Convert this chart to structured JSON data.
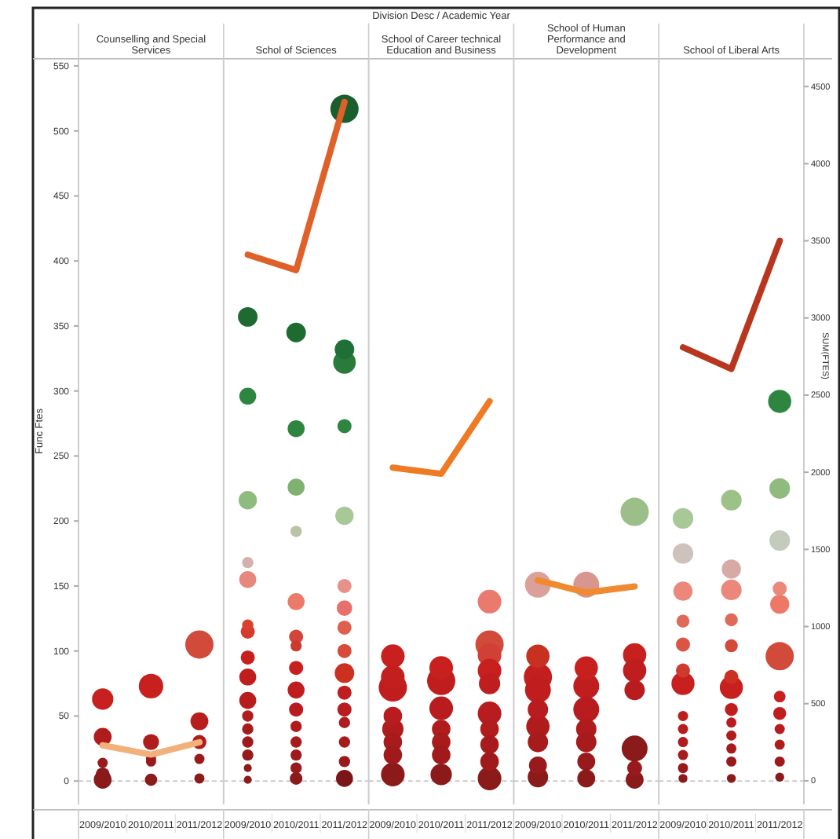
{
  "chart_data": [
    {
      "type": "bubble",
      "title": "Counselling and Special Services",
      "ylabel": "Func Ftes",
      "categories": [
        "2009/2010",
        "2010/2011",
        "2011/2012"
      ],
      "ylim": [
        -18,
        556
      ],
      "yticks": [
        0,
        50,
        100,
        150,
        200,
        250,
        300,
        350,
        400,
        450,
        500,
        550
      ],
      "y2lim": [
        -153,
        4684
      ],
      "ref_lines": [
        {
          "axis": "y",
          "value": 0,
          "color": "#cccccc",
          "line_style": "dashed"
        }
      ],
      "series": [
        {
          "type": "bubble",
          "x": [
            "2009/2010",
            "2009/2010",
            "2009/2010",
            "2009/2010",
            "2009/2010",
            "2010/2011",
            "2010/2011",
            "2010/2011",
            "2010/2011",
            "2010/2011",
            "2011/2012",
            "2011/2012",
            "2011/2012",
            "2011/2012",
            "2011/2012"
          ],
          "values": [
            63,
            34,
            14,
            5,
            1,
            73,
            30,
            17,
            15,
            1,
            105,
            46,
            30,
            17,
            2
          ],
          "sizes": [
            0.57,
            0.4,
            0.13,
            0.25,
            0.4,
            0.75,
            0.32,
            0.13,
            0.13,
            0.19,
            1,
            0.4,
            0.25,
            0.13,
            0.13
          ],
          "colors": [
            "#c8201f",
            "#b01c1c",
            "#9a1a1c",
            "#8b1a1a",
            "#8b1a1a",
            "#c8201f",
            "#b01c1c",
            "#9a1a1c",
            "#9a1a1c",
            "#8b1a1a",
            "#d24a3a",
            "#b81e1e",
            "#b01c1c",
            "#9a1a1c",
            "#8b1a1a"
          ]
        },
        {
          "type": "line",
          "axis": "y2",
          "color": "#f2b07a",
          "values": [
            230,
            170,
            250
          ]
        }
      ]
    },
    {
      "type": "bubble",
      "title": "Schol of Sciences",
      "categories": [
        "2009/2010",
        "2010/2011",
        "2011/2012"
      ],
      "ylim": [
        -18,
        556
      ],
      "y2lim": [
        -153,
        4684
      ],
      "tick_labels": "x",
      "ref_lines": [
        {
          "axis": "y",
          "value": 0,
          "color": "#cccccc",
          "line_style": "dashed"
        }
      ],
      "series": [
        {
          "type": "bubble",
          "x": [
            "2009/2010",
            "2009/2010",
            "2009/2010",
            "2009/2010",
            "2009/2010",
            "2009/2010",
            "2009/2010",
            "2009/2010",
            "2009/2010",
            "2009/2010",
            "2009/2010",
            "2009/2010",
            "2009/2010",
            "2009/2010",
            "2009/2010",
            "2009/2010",
            "2010/2011",
            "2010/2011",
            "2010/2011",
            "2010/2011",
            "2010/2011",
            "2010/2011",
            "2010/2011",
            "2010/2011",
            "2010/2011",
            "2010/2011",
            "2010/2011",
            "2010/2011",
            "2010/2011",
            "2010/2011",
            "2010/2011",
            "2011/2012",
            "2011/2012",
            "2011/2012",
            "2011/2012",
            "2011/2012",
            "2011/2012",
            "2011/2012",
            "2011/2012",
            "2011/2012",
            "2011/2012",
            "2011/2012",
            "2011/2012",
            "2011/2012",
            "2011/2012",
            "2011/2012",
            "2011/2012"
          ],
          "values": [
            357,
            296,
            216,
            168,
            155,
            120,
            115,
            95,
            80,
            62,
            50,
            40,
            30,
            20,
            10,
            1,
            345,
            271,
            226,
            192,
            138,
            111,
            104,
            87,
            70,
            55,
            42,
            30,
            20,
            10,
            2,
            517,
            332,
            322,
            273,
            204,
            150,
            133,
            118,
            100,
            83,
            68,
            55,
            45,
            30,
            15,
            2
          ],
          "sizes": [
            0.48,
            0.36,
            0.42,
            0.16,
            0.36,
            0.16,
            0.25,
            0.25,
            0.36,
            0.36,
            0.16,
            0.16,
            0.16,
            0.16,
            0.08,
            0.08,
            0.48,
            0.36,
            0.36,
            0.16,
            0.36,
            0.25,
            0.16,
            0.25,
            0.36,
            0.25,
            0.16,
            0.16,
            0.16,
            0.16,
            0.2,
            1,
            0.48,
            0.64,
            0.25,
            0.42,
            0.25,
            0.3,
            0.25,
            0.25,
            0.48,
            0.25,
            0.25,
            0.16,
            0.16,
            0.16,
            0.36
          ],
          "colors": [
            "#1e6b32",
            "#2e8540",
            "#8fbc7e",
            "#d6b0ae",
            "#e8877c",
            "#d84030",
            "#d63a2d",
            "#c8201f",
            "#c01e1e",
            "#b81c1e",
            "#b01c1c",
            "#a81b1c",
            "#a01a1c",
            "#981a1c",
            "#901a1a",
            "#8b1a1a",
            "#1e6b32",
            "#2e8540",
            "#7fb271",
            "#b8c4a6",
            "#ec7a6a",
            "#d2453a",
            "#cc3a2e",
            "#c8201f",
            "#c01e1e",
            "#b81c1e",
            "#b01c1c",
            "#a81b1c",
            "#a01a1c",
            "#981a1c",
            "#8b1a1a",
            "#1a5e2d",
            "#1f7036",
            "#2a7a3c",
            "#2e8540",
            "#a8c898",
            "#e8908a",
            "#e8706a",
            "#e06050",
            "#d84a3a",
            "#cc3020",
            "#c01e1e",
            "#b81c1e",
            "#b01c1c",
            "#a81b1c",
            "#981a1c",
            "#7a1518"
          ]
        },
        {
          "type": "line",
          "axis": "y2",
          "color": "#e0602a",
          "values": [
            3410,
            3310,
            4400
          ]
        }
      ]
    },
    {
      "type": "bubble",
      "subtitle": "Division Desc / Academic Year",
      "title": "School of Career technical Education and Business",
      "categories": [
        "2009/2010",
        "2010/2011",
        "2011/2012"
      ],
      "ylim": [
        -18,
        556
      ],
      "y2lim": [
        -153,
        4684
      ],
      "tick_labels": "x",
      "ref_lines": [
        {
          "axis": "y",
          "value": 0,
          "color": "#cccccc",
          "line_style": "dashed"
        }
      ],
      "series": [
        {
          "type": "bubble",
          "x": [
            "2009/2010",
            "2009/2010",
            "2009/2010",
            "2009/2010",
            "2009/2010",
            "2009/2010",
            "2009/2010",
            "2009/2010",
            "2010/2011",
            "2010/2011",
            "2010/2011",
            "2010/2011",
            "2010/2011",
            "2010/2011",
            "2010/2011",
            "2011/2012",
            "2011/2012",
            "2011/2012",
            "2011/2012",
            "2011/2012",
            "2011/2012",
            "2011/2012",
            "2011/2012",
            "2011/2012",
            "2011/2012"
          ],
          "values": [
            96,
            80,
            72,
            50,
            40,
            30,
            20,
            5,
            87,
            77,
            56,
            40,
            30,
            20,
            5,
            138,
            105,
            97,
            85,
            75,
            52,
            40,
            28,
            15,
            2
          ],
          "sizes": [
            0.7,
            0.7,
            1,
            0.43,
            0.57,
            0.43,
            0.43,
            0.7,
            0.7,
            1,
            0.7,
            0.43,
            0.43,
            0.43,
            0.57,
            0.7,
            1,
            0.7,
            0.7,
            0.57,
            0.7,
            0.43,
            0.43,
            0.43,
            0.7
          ],
          "colors": [
            "#c8201f",
            "#c41f1f",
            "#c01e1e",
            "#b81c1e",
            "#b01c1c",
            "#a81b1c",
            "#a01a1c",
            "#8b1a1a",
            "#c8201f",
            "#c01e1e",
            "#b81c1e",
            "#b01c1c",
            "#a81b1c",
            "#a01a1c",
            "#8b1a1a",
            "#ea7a6e",
            "#d24a3a",
            "#d04036",
            "#c8201f",
            "#c01e1e",
            "#b81c1e",
            "#b01c1c",
            "#a81b1c",
            "#a01a1c",
            "#8b1a1a"
          ]
        },
        {
          "type": "line",
          "axis": "y2",
          "color": "#ee7a26",
          "values": [
            2030,
            1990,
            2460
          ]
        }
      ]
    },
    {
      "type": "bubble",
      "title": "School of Human Performance and Development",
      "categories": [
        "2009/2010",
        "2010/2011",
        "2011/2012"
      ],
      "ylim": [
        -18,
        556
      ],
      "y2lim": [
        -153,
        4684
      ],
      "tick_labels": "x",
      "ref_lines": [
        {
          "axis": "y",
          "value": 0,
          "color": "#cccccc",
          "line_style": "dashed"
        }
      ],
      "series": [
        {
          "type": "bubble",
          "x": [
            "2009/2010",
            "2009/2010",
            "2009/2010",
            "2009/2010",
            "2009/2010",
            "2009/2010",
            "2009/2010",
            "2009/2010",
            "2009/2010",
            "2010/2011",
            "2010/2011",
            "2010/2011",
            "2010/2011",
            "2010/2011",
            "2010/2011",
            "2010/2011",
            "2010/2011",
            "2011/2012",
            "2011/2012",
            "2011/2012",
            "2011/2012",
            "2011/2012",
            "2011/2012",
            "2011/2012"
          ],
          "values": [
            151,
            96,
            80,
            70,
            55,
            42,
            30,
            12,
            3,
            151,
            87,
            73,
            55,
            40,
            30,
            15,
            2,
            207,
            97,
            85,
            70,
            25,
            10,
            1
          ],
          "sizes": [
            0.84,
            0.68,
            1,
            0.84,
            0.52,
            0.68,
            0.52,
            0.4,
            0.52,
            0.84,
            0.68,
            0.84,
            0.84,
            0.52,
            0.52,
            0.4,
            0.4,
            1,
            0.68,
            0.68,
            0.52,
            0.84,
            0.28,
            0.4
          ],
          "colors": [
            "#dca09a",
            "#c83020",
            "#c41f1f",
            "#c01e1e",
            "#b81c1e",
            "#b01c1c",
            "#a81b1c",
            "#981a1c",
            "#8b1a1a",
            "#d8968e",
            "#c8201f",
            "#c01e1e",
            "#b81c1e",
            "#b01c1c",
            "#a81b1c",
            "#981a1c",
            "#8b1a1a",
            "#9cbe88",
            "#c8201f",
            "#c01e1e",
            "#b81c1e",
            "#8b1a1a",
            "#981a1c",
            "#8b1a1a"
          ]
        },
        {
          "type": "line",
          "axis": "y2",
          "color": "#f08a30",
          "values": [
            1300,
            1220,
            1260
          ]
        }
      ]
    },
    {
      "type": "bubble",
      "title": "School of Liberal Arts",
      "y2label": "SUM(FTES)",
      "categories": [
        "2009/2010",
        "2010/2011",
        "2011/2012"
      ],
      "ylim": [
        -18,
        556
      ],
      "y2lim": [
        -153,
        4684
      ],
      "y2ticks": [
        0,
        500,
        1000,
        1500,
        2000,
        2500,
        3000,
        3500,
        4000,
        4500
      ],
      "ref_lines": [
        {
          "axis": "y",
          "value": 0,
          "color": "#cccccc",
          "line_style": "dashed"
        }
      ],
      "series": [
        {
          "type": "bubble",
          "x": [
            "2009/2010",
            "2009/2010",
            "2009/2010",
            "2009/2010",
            "2009/2010",
            "2009/2010",
            "2009/2010",
            "2009/2010",
            "2009/2010",
            "2009/2010",
            "2009/2010",
            "2009/2010",
            "2009/2010",
            "2010/2011",
            "2010/2011",
            "2010/2011",
            "2010/2011",
            "2010/2011",
            "2010/2011",
            "2010/2011",
            "2010/2011",
            "2010/2011",
            "2010/2011",
            "2010/2011",
            "2010/2011",
            "2010/2011",
            "2011/2012",
            "2011/2012",
            "2011/2012",
            "2011/2012",
            "2011/2012",
            "2011/2012",
            "2011/2012",
            "2011/2012",
            "2011/2012",
            "2011/2012",
            "2011/2012",
            "2011/2012"
          ],
          "values": [
            202,
            175,
            146,
            123,
            105,
            85,
            75,
            50,
            40,
            30,
            20,
            10,
            2,
            216,
            163,
            147,
            124,
            104,
            80,
            72,
            55,
            45,
            35,
            25,
            15,
            2,
            292,
            225,
            185,
            148,
            136,
            96,
            65,
            52,
            40,
            28,
            15,
            3
          ],
          "sizes": [
            0.53,
            0.53,
            0.46,
            0.21,
            0.25,
            0.25,
            0.67,
            0.13,
            0.13,
            0.13,
            0.13,
            0.13,
            0.1,
            0.53,
            0.46,
            0.53,
            0.21,
            0.21,
            0.25,
            0.67,
            0.21,
            0.13,
            0.13,
            0.13,
            0.13,
            0.1,
            0.67,
            0.53,
            0.53,
            0.25,
            0.46,
            1,
            0.17,
            0.21,
            0.13,
            0.13,
            0.13,
            0.1
          ],
          "colors": [
            "#a8c898",
            "#cdc2bc",
            "#ec887a",
            "#e06a5a",
            "#dc5444",
            "#d03a2c",
            "#c8201f",
            "#c01e1e",
            "#b81c1e",
            "#b01c1c",
            "#a81b1c",
            "#981a1c",
            "#8b1a1a",
            "#9cc288",
            "#d8aaa6",
            "#ec887a",
            "#e06a5a",
            "#d44a3a",
            "#cc3020",
            "#c8201f",
            "#c01e1e",
            "#b81c1e",
            "#b01c1c",
            "#a81b1c",
            "#981a1c",
            "#8b1a1a",
            "#2e8540",
            "#8fbc7e",
            "#c4cabc",
            "#ec887a",
            "#ee7868",
            "#d24a3a",
            "#c8201f",
            "#c01e1e",
            "#b81c1e",
            "#b01c1c",
            "#a01a1c",
            "#8b1a1a"
          ]
        },
        {
          "type": "line",
          "axis": "y2",
          "color": "#b8361e",
          "values": [
            2810,
            2670,
            3500
          ]
        }
      ]
    }
  ]
}
